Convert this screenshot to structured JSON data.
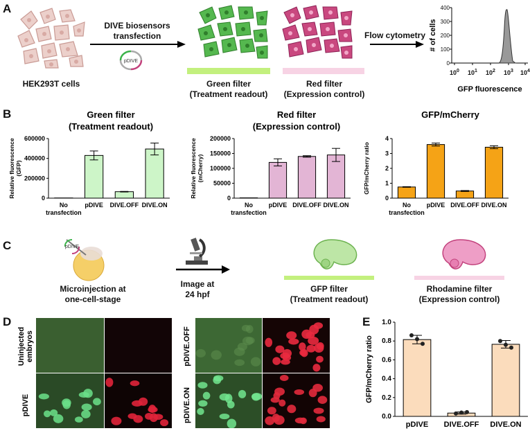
{
  "panel_a": {
    "panel_letter": "A",
    "cells_label": "HEK293T cells",
    "transfection_label_line1": "DIVE biosensors",
    "transfection_label_line2": "transfection",
    "plasmid_label": "pDIVE",
    "green_filter_line1": "Green filter",
    "green_filter_line2": "(Treatment readout)",
    "red_filter_line1": "Red filter",
    "red_filter_line2": "(Expression control)",
    "flow_label": "Flow cytometry",
    "histogram": {
      "ylabel": "# of cells",
      "xlabel": "GFP fluorescence",
      "yticks": [
        "0",
        "100",
        "200",
        "300",
        "400"
      ],
      "xticks_base": [
        "10",
        "10",
        "10",
        "10",
        "10"
      ],
      "xticks_exp": [
        "0",
        "1",
        "2",
        "3",
        "4"
      ]
    },
    "colors": {
      "green": "#4caf50",
      "magenta": "#c2417c",
      "pale_cells": "#e9c9c4"
    }
  },
  "panel_b": {
    "panel_letter": "B",
    "charts": [
      {
        "title_line1": "Green filter",
        "title_line2": "(Treatment readout)",
        "ylabel_line1": "Relative fluorescence",
        "ylabel_line2": "(GFP)"
      },
      {
        "title_line1": "Red filter",
        "title_line2": "(Expression control)",
        "ylabel_line1": "Relative fluorescence",
        "ylabel_line2": "(mCherry)"
      },
      {
        "title_line1": "GFP/mCherry",
        "title_line2": "",
        "ylabel_line1": "GFP/mCherry ratio",
        "ylabel_line2": ""
      }
    ],
    "category_labels": [
      [
        "No",
        "transfection"
      ],
      [
        "pDIVE",
        ""
      ],
      [
        "DIVE.OFF",
        ""
      ],
      [
        "DIVE.ON",
        ""
      ]
    ]
  },
  "panel_c": {
    "panel_letter": "C",
    "plasmid_label": "pDIVE",
    "micro_line1": "Microinjection at",
    "micro_line2": "one-cell-stage",
    "image_line1": "Image at",
    "image_line2": "24 hpf",
    "gfp_line1": "GFP filter",
    "gfp_line2": "(Treatment readout)",
    "rho_line1": "Rhodamine filter",
    "rho_line2": "(Expression control)"
  },
  "panel_d": {
    "panel_letter": "D",
    "rows": [
      {
        "label_line1": "Uninjected",
        "label_line2": "embryos"
      },
      {
        "label_line1": "pDIVE.OFF",
        "label_line2": ""
      },
      {
        "label_line1": "pDIVE",
        "label_line2": ""
      },
      {
        "label_line1": "pDIVE.ON",
        "label_line2": ""
      }
    ]
  },
  "panel_e": {
    "panel_letter": "E"
  },
  "chart_data": [
    {
      "type": "bar",
      "title": "Green filter (Treatment readout)",
      "ylabel": "Relative fluorescence (GFP)",
      "categories": [
        "No transfection",
        "pDIVE",
        "DIVE.OFF",
        "DIVE.ON"
      ],
      "values": [
        2000,
        430000,
        65000,
        495000
      ],
      "errors": [
        0,
        45000,
        3000,
        60000
      ],
      "ylim": [
        0,
        600000
      ],
      "yticks": [
        0,
        200000,
        400000,
        600000
      ],
      "color": "#cdf5c8"
    },
    {
      "type": "bar",
      "title": "Red filter (Expression control)",
      "ylabel": "Relative fluorescence (mCherry)",
      "categories": [
        "No transfection",
        "pDIVE",
        "DIVE.OFF",
        "DIVE.ON"
      ],
      "values": [
        1000,
        120000,
        140000,
        145000
      ],
      "errors": [
        0,
        12000,
        2500,
        22000
      ],
      "ylim": [
        0,
        200000
      ],
      "yticks": [
        0,
        50000,
        100000,
        150000,
        200000
      ],
      "color": "#e3b5d5"
    },
    {
      "type": "bar",
      "title": "GFP/mCherry",
      "ylabel": "GFP/mCherry ratio",
      "categories": [
        "No transfection",
        "pDIVE",
        "DIVE.OFF",
        "DIVE.ON"
      ],
      "values": [
        0.75,
        3.6,
        0.48,
        3.42
      ],
      "errors": [
        0.02,
        0.1,
        0.03,
        0.1
      ],
      "ylim": [
        0,
        4
      ],
      "yticks": [
        0,
        1,
        2,
        3,
        4
      ],
      "color": "#f5a316"
    },
    {
      "type": "bar",
      "ylabel": "GFP/mCherry ratio",
      "categories": [
        "pDIVE",
        "DIVE.OFF",
        "DIVE.ON"
      ],
      "values": [
        0.815,
        0.035,
        0.765
      ],
      "errors": [
        0.045,
        0.012,
        0.04
      ],
      "points": [
        [
          0.86,
          0.82,
          0.77
        ],
        [
          0.03,
          0.04,
          0.045
        ],
        [
          0.8,
          0.76,
          0.73
        ]
      ],
      "ylim": [
        0,
        1.0
      ],
      "yticks": [
        0.0,
        0.2,
        0.4,
        0.6,
        0.8,
        1.0
      ],
      "color": "#fbdcbc"
    }
  ]
}
